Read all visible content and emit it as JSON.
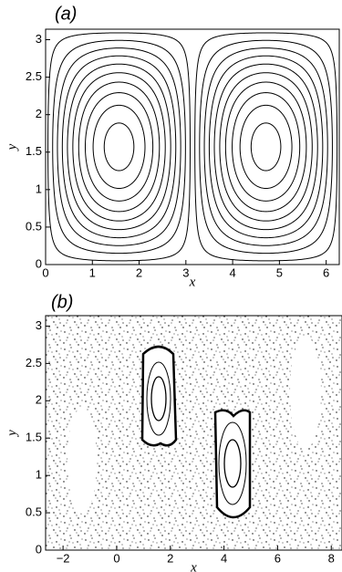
{
  "chart_data": [
    {
      "type": "contour",
      "title": "(a)",
      "xlabel": "x",
      "ylabel": "y",
      "levels": [
        0.05,
        0.15,
        0.25,
        0.35,
        0.45,
        0.55,
        0.65,
        0.75,
        0.85,
        0.95
      ],
      "color": "#000000",
      "xlim": [
        0,
        6.28
      ],
      "ylim": [
        0,
        3.14
      ],
      "xticks": [
        0,
        1,
        2,
        3,
        4,
        5,
        6
      ],
      "yticks": [
        0,
        0.5,
        1,
        1.5,
        2,
        2.5,
        3
      ]
    },
    {
      "type": "poincare",
      "title": "(b)",
      "xlabel": "x",
      "ylabel": "y",
      "color": "#000000",
      "xlim": [
        -2.65,
        8.4
      ],
      "ylim": [
        0,
        3.14
      ],
      "xticks": [
        {
          "value": -2,
          "label": "−2"
        },
        0,
        2,
        4,
        6,
        8
      ],
      "yticks": [
        0,
        0.5,
        1,
        1.5,
        2,
        2.5,
        3
      ]
    }
  ]
}
